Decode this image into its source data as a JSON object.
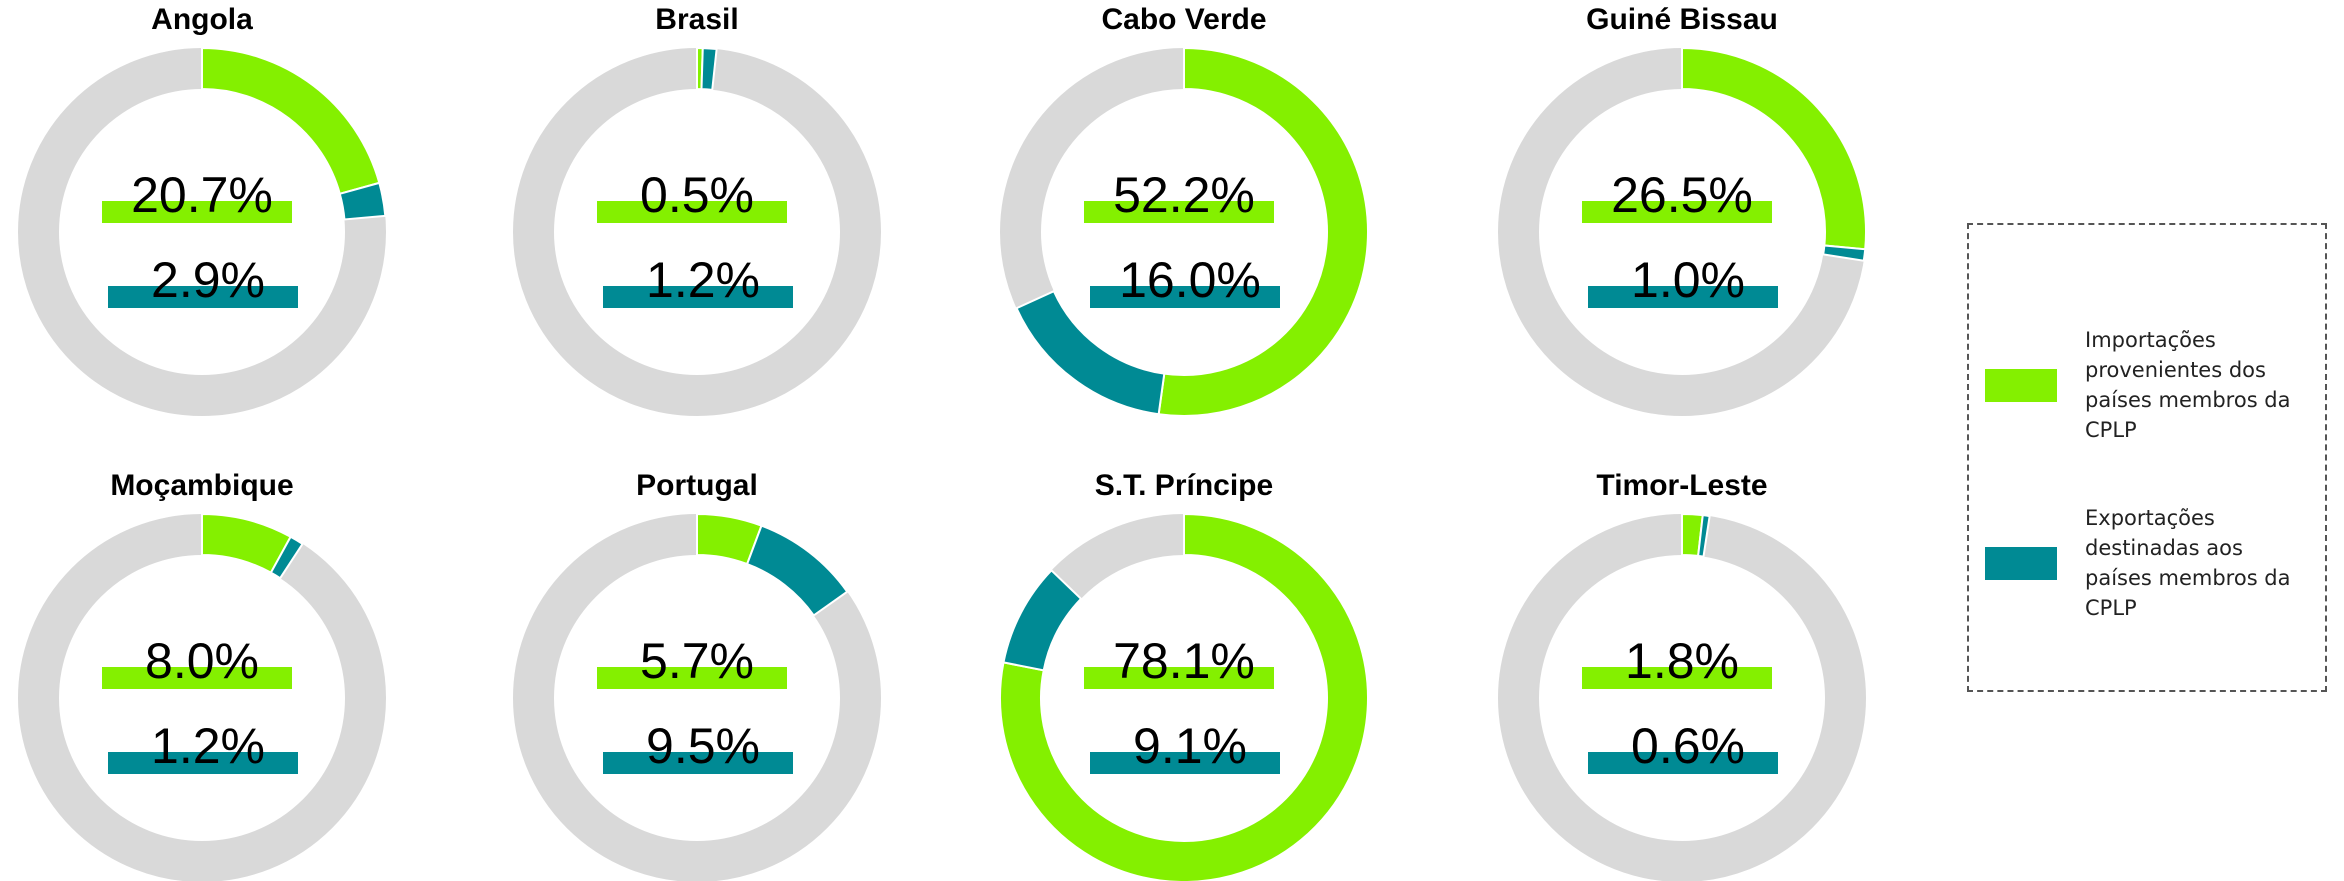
{
  "legend": {
    "items": [
      {
        "name": "Importações provenientes dos países membros da CPLP",
        "color": "#84f000"
      },
      {
        "name": "Exportações destinadas aos países membros da CPLP",
        "color": "#008a94"
      }
    ]
  },
  "chart_data": [
    {
      "type": "pie",
      "donut": true,
      "title": "Angola",
      "values": [
        20.7,
        2.9
      ],
      "value_labels": [
        "20.7%",
        "2.9%"
      ],
      "colors": [
        "#84f000",
        "#008a94"
      ],
      "rest_color": "#d9d9d9"
    },
    {
      "type": "pie",
      "donut": true,
      "title": "Brasil",
      "values": [
        0.5,
        1.2
      ],
      "value_labels": [
        "0.5%",
        "1.2%"
      ],
      "colors": [
        "#84f000",
        "#008a94"
      ],
      "rest_color": "#d9d9d9"
    },
    {
      "type": "pie",
      "donut": true,
      "title": "Cabo Verde",
      "values": [
        52.2,
        16.0
      ],
      "value_labels": [
        "52.2%",
        "16.0%"
      ],
      "colors": [
        "#84f000",
        "#008a94"
      ],
      "rest_color": "#d9d9d9"
    },
    {
      "type": "pie",
      "donut": true,
      "title": "Guiné Bissau",
      "values": [
        26.5,
        1.0
      ],
      "value_labels": [
        "26.5%",
        "1.0%"
      ],
      "colors": [
        "#84f000",
        "#008a94"
      ],
      "rest_color": "#d9d9d9"
    },
    {
      "type": "pie",
      "donut": true,
      "title": "Moçambique",
      "values": [
        8.0,
        1.2
      ],
      "value_labels": [
        "8.0%",
        "1.2%"
      ],
      "colors": [
        "#84f000",
        "#008a94"
      ],
      "rest_color": "#d9d9d9"
    },
    {
      "type": "pie",
      "donut": true,
      "title": "Portugal",
      "values": [
        5.7,
        9.5
      ],
      "value_labels": [
        "5.7%",
        "9.5%"
      ],
      "colors": [
        "#84f000",
        "#008a94"
      ],
      "rest_color": "#d9d9d9"
    },
    {
      "type": "pie",
      "donut": true,
      "title": "S.T. Príncipe",
      "values": [
        78.1,
        9.1
      ],
      "value_labels": [
        "78.1%",
        "9.1%"
      ],
      "colors": [
        "#84f000",
        "#008a94"
      ],
      "rest_color": "#d9d9d9"
    },
    {
      "type": "pie",
      "donut": true,
      "title": "Timor-Leste",
      "values": [
        1.8,
        0.6
      ],
      "value_labels": [
        "1.8%",
        "0.6%"
      ],
      "colors": [
        "#84f000",
        "#008a94"
      ],
      "rest_color": "#d9d9d9"
    }
  ]
}
